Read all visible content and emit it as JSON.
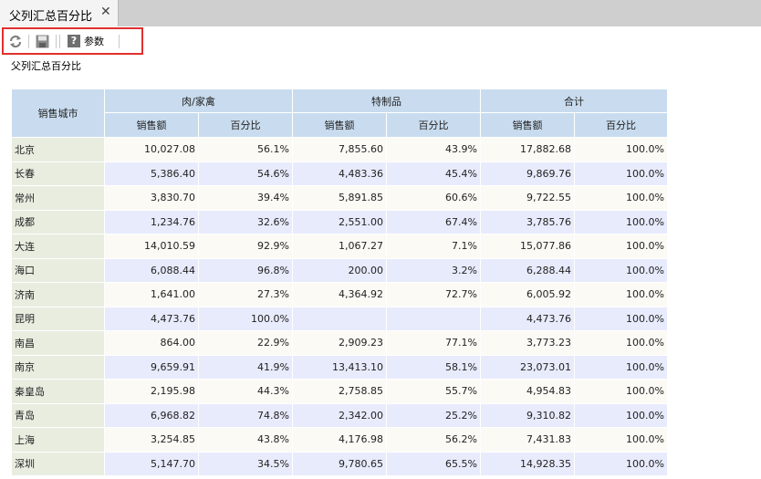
{
  "tab": {
    "title": "父列汇总百分比",
    "close_glyph": "✕"
  },
  "toolbar": {
    "refresh_icon": "refresh-icon",
    "save_icon": "save-icon",
    "params_icon": "question-icon",
    "params_glyph": "?",
    "params_label": "参数"
  },
  "report": {
    "label": "父列汇总百分比",
    "header": {
      "city": "销售城市",
      "groups": [
        "肉/家禽",
        "特制品",
        "合计"
      ],
      "sub": [
        "销售额",
        "百分比",
        "销售额",
        "百分比",
        "销售额",
        "百分比"
      ]
    },
    "rows": [
      [
        "北京",
        "10,027.08",
        "56.1%",
        "7,855.60",
        "43.9%",
        "17,882.68",
        "100.0%"
      ],
      [
        "长春",
        "5,386.40",
        "54.6%",
        "4,483.36",
        "45.4%",
        "9,869.76",
        "100.0%"
      ],
      [
        "常州",
        "3,830.70",
        "39.4%",
        "5,891.85",
        "60.6%",
        "9,722.55",
        "100.0%"
      ],
      [
        "成都",
        "1,234.76",
        "32.6%",
        "2,551.00",
        "67.4%",
        "3,785.76",
        "100.0%"
      ],
      [
        "大连",
        "14,010.59",
        "92.9%",
        "1,067.27",
        "7.1%",
        "15,077.86",
        "100.0%"
      ],
      [
        "海口",
        "6,088.44",
        "96.8%",
        "200.00",
        "3.2%",
        "6,288.44",
        "100.0%"
      ],
      [
        "济南",
        "1,641.00",
        "27.3%",
        "4,364.92",
        "72.7%",
        "6,005.92",
        "100.0%"
      ],
      [
        "昆明",
        "4,473.76",
        "100.0%",
        "",
        "",
        "4,473.76",
        "100.0%"
      ],
      [
        "南昌",
        "864.00",
        "22.9%",
        "2,909.23",
        "77.1%",
        "3,773.23",
        "100.0%"
      ],
      [
        "南京",
        "9,659.91",
        "41.9%",
        "13,413.10",
        "58.1%",
        "23,073.01",
        "100.0%"
      ],
      [
        "秦皇岛",
        "2,195.98",
        "44.3%",
        "2,758.85",
        "55.7%",
        "4,954.83",
        "100.0%"
      ],
      [
        "青岛",
        "6,968.82",
        "74.8%",
        "2,342.00",
        "25.2%",
        "9,310.82",
        "100.0%"
      ],
      [
        "上海",
        "3,254.85",
        "43.8%",
        "4,176.98",
        "56.2%",
        "7,431.83",
        "100.0%"
      ],
      [
        "深圳",
        "5,147.70",
        "34.5%",
        "9,780.65",
        "65.5%",
        "14,928.35",
        "100.0%"
      ]
    ]
  }
}
